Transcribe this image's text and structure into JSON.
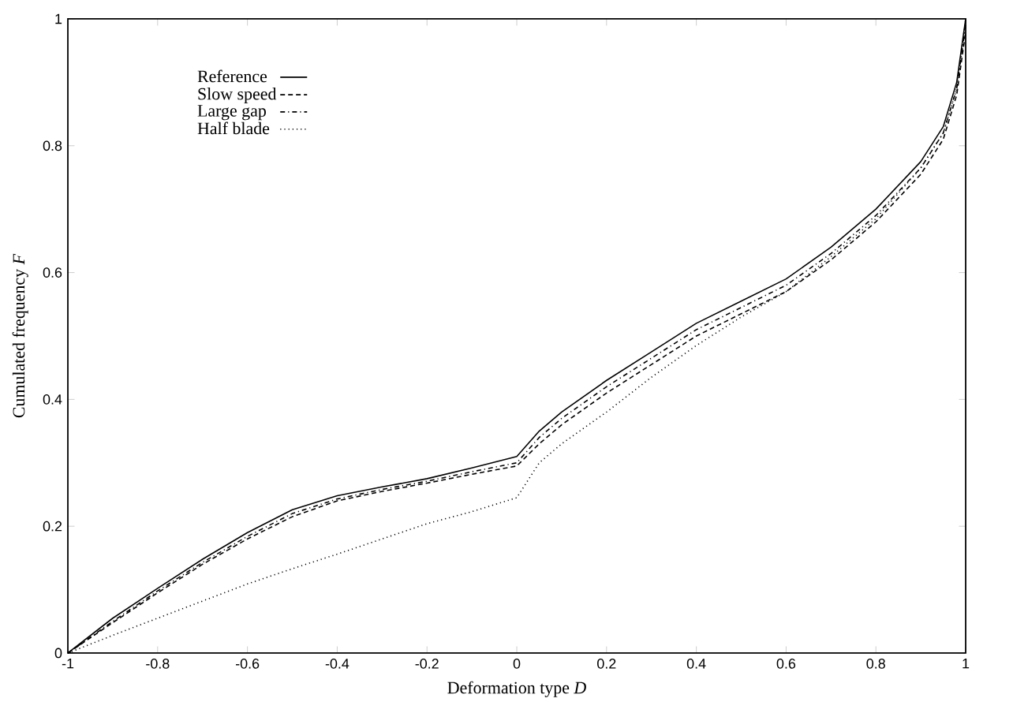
{
  "chart_data": {
    "type": "line",
    "xlabel": "Deformation type *D*",
    "ylabel": "Cumulated frequency *F*",
    "x": [
      -1,
      -0.9,
      -0.8,
      -0.7,
      -0.6,
      -0.5,
      -0.4,
      -0.3,
      -0.2,
      -0.1,
      0,
      0.05,
      0.1,
      0.2,
      0.3,
      0.4,
      0.5,
      0.6,
      0.7,
      0.8,
      0.9,
      0.95,
      0.98,
      1
    ],
    "series": [
      {
        "name": "Reference",
        "color": "#000000",
        "line_style": "solid",
        "values": [
          0,
          0.055,
          0.102,
          0.148,
          0.19,
          0.226,
          0.248,
          0.262,
          0.275,
          0.292,
          0.31,
          0.35,
          0.38,
          0.43,
          0.475,
          0.52,
          0.555,
          0.59,
          0.64,
          0.7,
          0.775,
          0.83,
          0.9,
          1
        ]
      },
      {
        "name": "Slow speed",
        "color": "#000000",
        "line_style": "dashed",
        "values": [
          0,
          0.048,
          0.095,
          0.14,
          0.18,
          0.215,
          0.24,
          0.255,
          0.268,
          0.282,
          0.295,
          0.33,
          0.36,
          0.41,
          0.455,
          0.5,
          0.535,
          0.57,
          0.62,
          0.68,
          0.755,
          0.81,
          0.88,
          0.98
        ]
      },
      {
        "name": "Large gap",
        "color": "#000000",
        "line_style": "dashdot",
        "values": [
          0,
          0.05,
          0.098,
          0.143,
          0.184,
          0.22,
          0.243,
          0.258,
          0.271,
          0.286,
          0.3,
          0.34,
          0.37,
          0.42,
          0.465,
          0.51,
          0.545,
          0.58,
          0.63,
          0.69,
          0.765,
          0.82,
          0.89,
          0.99
        ]
      },
      {
        "name": "Half blade",
        "color": "#000000",
        "line_style": "dotted",
        "values": [
          0,
          0.028,
          0.055,
          0.082,
          0.109,
          0.133,
          0.156,
          0.18,
          0.204,
          0.223,
          0.245,
          0.3,
          0.33,
          0.38,
          0.435,
          0.485,
          0.53,
          0.57,
          0.625,
          0.685,
          0.765,
          0.82,
          0.89,
          1
        ]
      }
    ],
    "xlim": [
      -1,
      1
    ],
    "ylim": [
      0,
      1
    ],
    "xticks": [
      -1,
      -0.8,
      -0.6,
      -0.4,
      -0.2,
      0,
      0.2,
      0.4,
      0.6,
      0.8,
      1
    ],
    "yticks": [
      0,
      0.2,
      0.4,
      0.6,
      0.8,
      1
    ],
    "grid": false,
    "legend": "top left",
    "marker": "none"
  }
}
